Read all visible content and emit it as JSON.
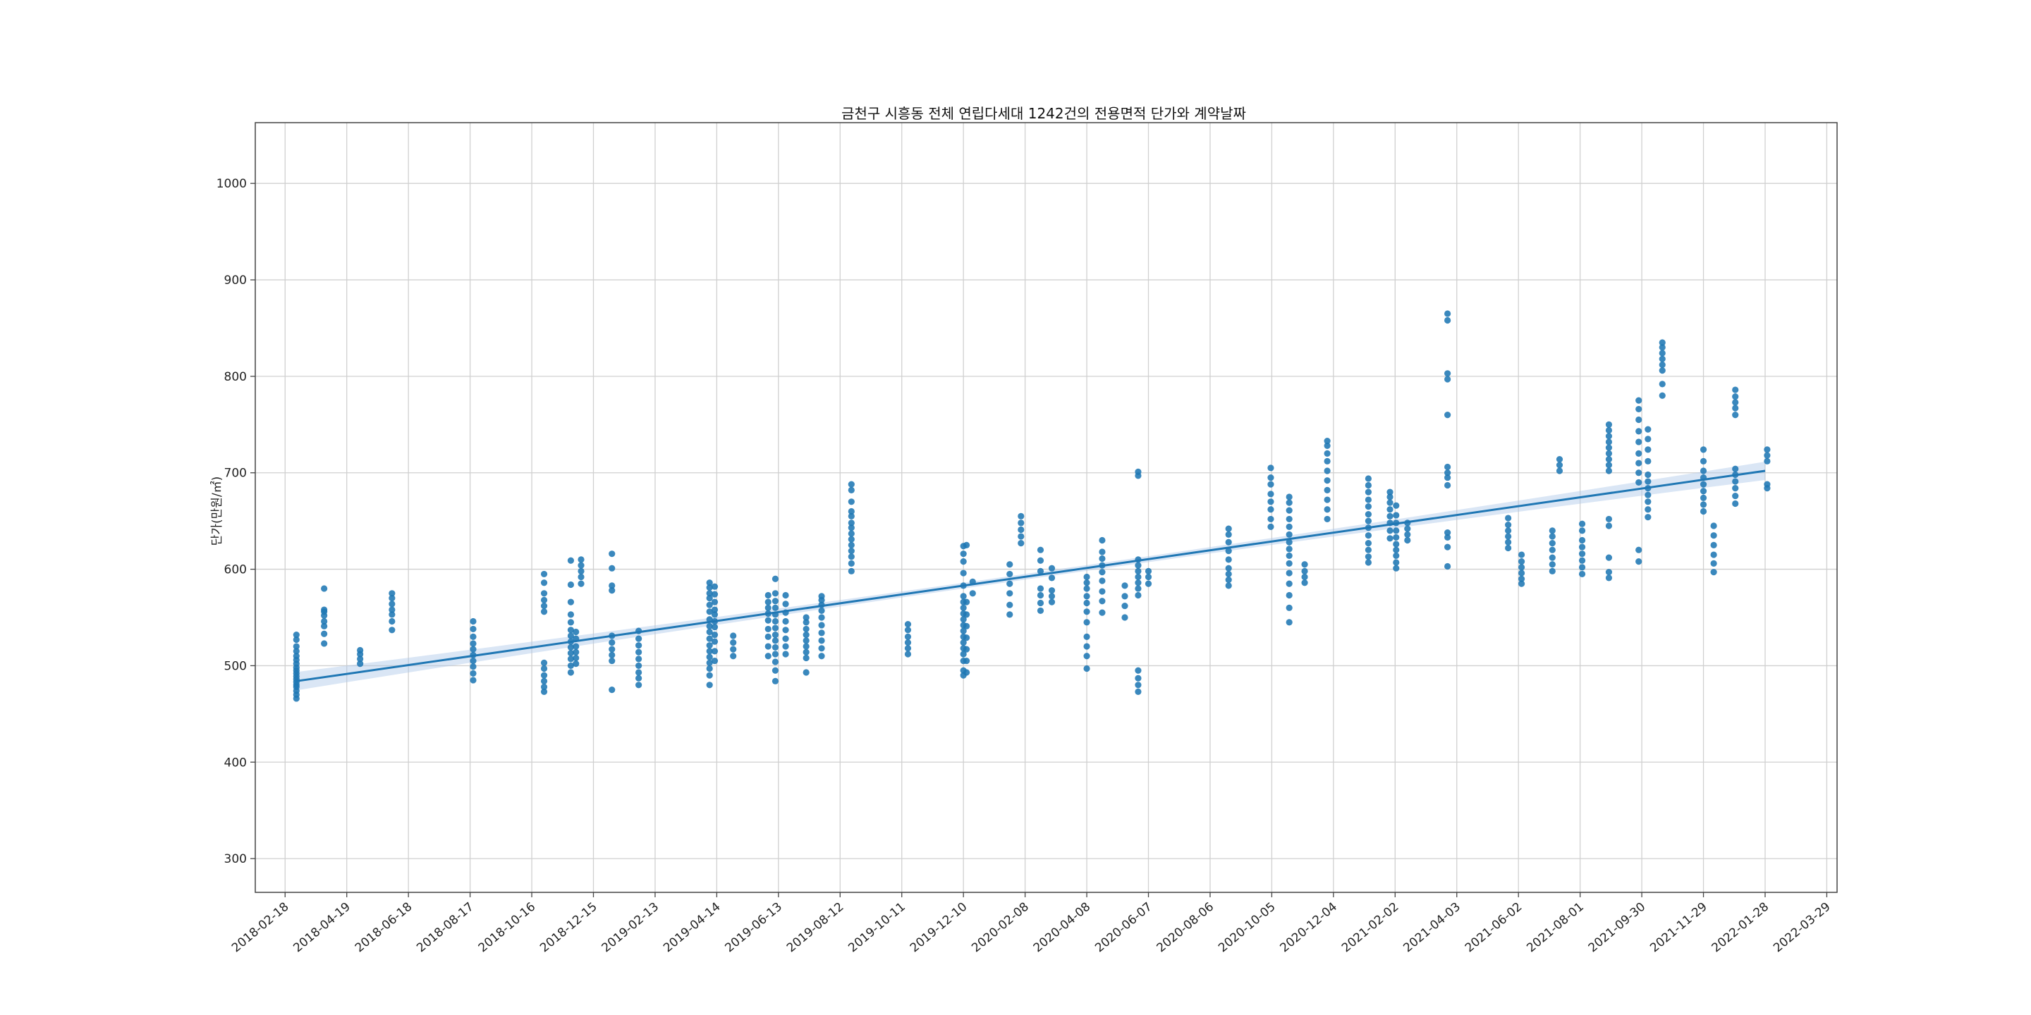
{
  "chart_data": {
    "type": "scatter",
    "title": "금천구 시흥동 전체 연립다세대 1242건의 전용면적 단가와 계약날짜",
    "xlabel": "",
    "ylabel": "단가(만원/㎡)",
    "ylim": [
      265,
      1063
    ],
    "xlim": [
      "2018-01-20",
      "2022-04-08"
    ],
    "grid": true,
    "y_ticks": [
      300,
      400,
      500,
      600,
      700,
      800,
      900,
      1000
    ],
    "x_ticks": [
      "2018-02-18",
      "2018-04-19",
      "2018-06-18",
      "2018-08-17",
      "2018-10-16",
      "2018-12-15",
      "2019-02-13",
      "2019-04-14",
      "2019-06-13",
      "2019-08-12",
      "2019-10-11",
      "2019-12-10",
      "2020-02-08",
      "2020-04-08",
      "2020-06-07",
      "2020-08-06",
      "2020-10-05",
      "2020-12-04",
      "2021-02-02",
      "2021-04-03",
      "2021-06-02",
      "2021-08-01",
      "2021-09-30",
      "2021-11-29",
      "2022-01-28",
      "2022-03-29"
    ],
    "colors": {
      "points": "#1f77b4",
      "regression": "#1f77b4",
      "ci_band": "#aec7e8",
      "grid": "#d0d0d0",
      "axes": "#444444"
    },
    "regression": {
      "x": [
        "2018-03-01",
        "2022-01-28"
      ],
      "y": [
        484,
        702
      ]
    },
    "series": [
      {
        "points": [
          {
            "x": "2018-03-01",
            "values": [
              466,
              470,
              474,
              478,
              480,
              483,
              486,
              489,
              492,
              495,
              498,
              502,
              506,
              510,
              515,
              520,
              527,
              532
            ]
          },
          {
            "x": "2018-03-28",
            "values": [
              523,
              533,
              541,
              546,
              552,
              556,
              558,
              580
            ]
          },
          {
            "x": "2018-05-02",
            "values": [
              502,
              507,
              512,
              516
            ]
          },
          {
            "x": "2018-06-02",
            "values": [
              537,
              546,
              553,
              558,
              564,
              570,
              575
            ]
          },
          {
            "x": "2018-08-20",
            "values": [
              485,
              492,
              499,
              505,
              511,
              517,
              523,
              530,
              538,
              546
            ]
          },
          {
            "x": "2018-10-28",
            "values": [
              473,
              478,
              484,
              490,
              497,
              503,
              556,
              562,
              568,
              575,
              586,
              595
            ]
          },
          {
            "x": "2018-11-23",
            "values": [
              493,
              500,
              507,
              513,
              519,
              525,
              531,
              537,
              545,
              553,
              566,
              584,
              609
            ]
          },
          {
            "x": "2018-11-28",
            "values": [
              502,
              508,
              514,
              520,
              528,
              535
            ]
          },
          {
            "x": "2018-12-03",
            "values": [
              585,
              592,
              598,
              604,
              610
            ]
          },
          {
            "x": "2019-01-02",
            "values": [
              475,
              505,
              511,
              517,
              524,
              531,
              578,
              583,
              601,
              616
            ]
          },
          {
            "x": "2019-01-28",
            "values": [
              480,
              487,
              493,
              500,
              507,
              514,
              521,
              528,
              536
            ]
          },
          {
            "x": "2019-04-07",
            "values": [
              480,
              490,
              497,
              503,
              509,
              515,
              521,
              528,
              535,
              541,
              548,
              556,
              563,
              570,
              575,
              581,
              586
            ]
          },
          {
            "x": "2019-04-12",
            "values": [
              505,
              515,
              525,
              532,
              540,
              546,
              553,
              558,
              566,
              574,
              582
            ]
          },
          {
            "x": "2019-04-30",
            "values": [
              510,
              517,
              524,
              531
            ]
          },
          {
            "x": "2019-06-03",
            "values": [
              510,
              520,
              530,
              538,
              547,
              554,
              560,
              566,
              573
            ]
          },
          {
            "x": "2019-06-10",
            "values": [
              484,
              495,
              504,
              512,
              519,
              526,
              532,
              539,
              546,
              553,
              560,
              567,
              575,
              590
            ]
          },
          {
            "x": "2019-06-20",
            "values": [
              512,
              520,
              528,
              537,
              546,
              555,
              564,
              573
            ]
          },
          {
            "x": "2019-07-10",
            "values": [
              493,
              508,
              514,
              520,
              526,
              532,
              538,
              545,
              550
            ]
          },
          {
            "x": "2019-07-25",
            "values": [
              510,
              518,
              526,
              534,
              542,
              550,
              557,
              563,
              568,
              572
            ]
          },
          {
            "x": "2019-08-23",
            "values": [
              598,
              606,
              613,
              619,
              625,
              631,
              637,
              643,
              648,
              655,
              660,
              670,
              682,
              688
            ]
          },
          {
            "x": "2019-10-17",
            "values": [
              512,
              518,
              524,
              530,
              537,
              543
            ]
          },
          {
            "x": "2019-12-10",
            "values": [
              490,
              495,
              505,
              512,
              518,
              524,
              530,
              536,
              542,
              548,
              554,
              560,
              566,
              572,
              583,
              596,
              608,
              616,
              624
            ]
          },
          {
            "x": "2019-12-13",
            "values": [
              493,
              505,
              517,
              529,
              541,
              553,
              566,
              625
            ]
          },
          {
            "x": "2019-12-19",
            "values": [
              575,
              587
            ]
          },
          {
            "x": "2020-01-24",
            "values": [
              553,
              563,
              575,
              585,
              595,
              605
            ]
          },
          {
            "x": "2020-02-04",
            "values": [
              627,
              634,
              641,
              648,
              655
            ]
          },
          {
            "x": "2020-02-23",
            "values": [
              557,
              565,
              573,
              580,
              598,
              609,
              620
            ]
          },
          {
            "x": "2020-03-05",
            "values": [
              566,
              572,
              578,
              591,
              601
            ]
          },
          {
            "x": "2020-04-08",
            "values": [
              497,
              510,
              520,
              530,
              545,
              556,
              565,
              572,
              580,
              586,
              592
            ]
          },
          {
            "x": "2020-04-23",
            "values": [
              555,
              567,
              577,
              588,
              597,
              604,
              611,
              618,
              630
            ]
          },
          {
            "x": "2020-05-15",
            "values": [
              550,
              562,
              572,
              583
            ]
          },
          {
            "x": "2020-05-28",
            "values": [
              473,
              480,
              487,
              495,
              573,
              580,
              586,
              592,
              598,
              604,
              610,
              697,
              701
            ]
          },
          {
            "x": "2020-06-07",
            "values": [
              585,
              592,
              598
            ]
          },
          {
            "x": "2020-08-24",
            "values": [
              583,
              589,
              595,
              601,
              610,
              619,
              628,
              636,
              642
            ]
          },
          {
            "x": "2020-10-04",
            "values": [
              644,
              652,
              662,
              670,
              678,
              688,
              695,
              705
            ]
          },
          {
            "x": "2020-10-22",
            "values": [
              545,
              560,
              573,
              585,
              596,
              606,
              614,
              621,
              628,
              636,
              644,
              652,
              661,
              669,
              675
            ]
          },
          {
            "x": "2020-11-06",
            "values": [
              586,
              592,
              598,
              605
            ]
          },
          {
            "x": "2020-11-28",
            "values": [
              652,
              662,
              672,
              682,
              692,
              702,
              712,
              720,
              728,
              733
            ]
          },
          {
            "x": "2021-01-07",
            "values": [
              607,
              613,
              620,
              627,
              635,
              643,
              650,
              657,
              665,
              672,
              680,
              687,
              694
            ]
          },
          {
            "x": "2021-01-28",
            "values": [
              632,
              640,
              648,
              655,
              662,
              669,
              675,
              680
            ]
          },
          {
            "x": "2021-02-03",
            "values": [
              601,
              607,
              614,
              620,
              626,
              633,
              640,
              648,
              656,
              666
            ]
          },
          {
            "x": "2021-02-14",
            "values": [
              630,
              636,
              642,
              648
            ]
          },
          {
            "x": "2021-03-25",
            "values": [
              603,
              623,
              633,
              638,
              687,
              695,
              700,
              706,
              760,
              797,
              803,
              858,
              865
            ]
          },
          {
            "x": "2021-05-23",
            "values": [
              622,
              628,
              634,
              640,
              646,
              653
            ]
          },
          {
            "x": "2021-06-05",
            "values": [
              585,
              590,
              596,
              602,
              608,
              615
            ]
          },
          {
            "x": "2021-07-05",
            "values": [
              598,
              605,
              612,
              620,
              627,
              634,
              640
            ]
          },
          {
            "x": "2021-07-12",
            "values": [
              702,
              708,
              714
            ]
          },
          {
            "x": "2021-08-03",
            "values": [
              595,
              602,
              609,
              616,
              623,
              630,
              640,
              647
            ]
          },
          {
            "x": "2021-08-29",
            "values": [
              591,
              597,
              612,
              645,
              652,
              702,
              708,
              714,
              720,
              726,
              732,
              738,
              744,
              750
            ]
          },
          {
            "x": "2021-09-27",
            "values": [
              608,
              620,
              690,
              700,
              710,
              720,
              732,
              743,
              755,
              766,
              775
            ]
          },
          {
            "x": "2021-10-06",
            "values": [
              654,
              662,
              670,
              677,
              684,
              691,
              698,
              712,
              724,
              735,
              745
            ]
          },
          {
            "x": "2021-10-20",
            "values": [
              780,
              792,
              806,
              812,
              818,
              824,
              830,
              835
            ]
          },
          {
            "x": "2021-11-29",
            "values": [
              660,
              667,
              674,
              681,
              688,
              695,
              702,
              712,
              724
            ]
          },
          {
            "x": "2021-12-09",
            "values": [
              597,
              606,
              615,
              625,
              635,
              645
            ]
          },
          {
            "x": "2021-12-30",
            "values": [
              668,
              676,
              684,
              691,
              698,
              704,
              760,
              767,
              773,
              779,
              786
            ]
          },
          {
            "x": "2022-01-30",
            "values": [
              684,
              688,
              712,
              718,
              724
            ]
          }
        ]
      }
    ]
  }
}
